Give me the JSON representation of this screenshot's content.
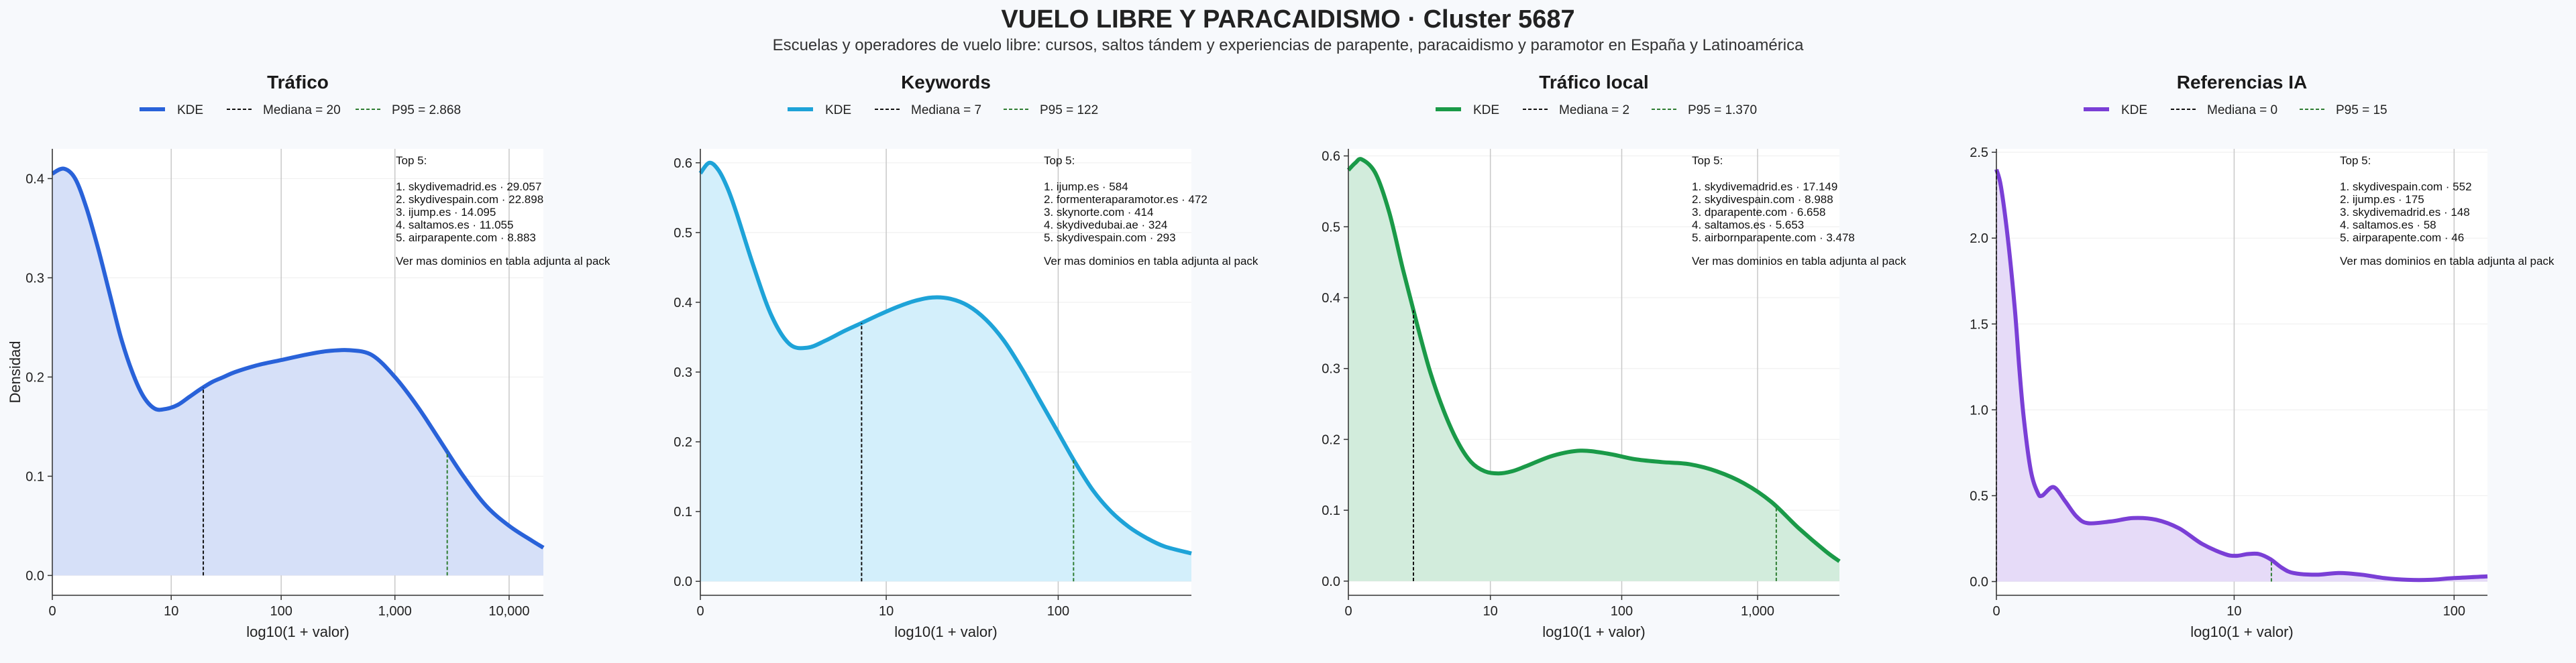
{
  "title": "VUELO LIBRE Y PARACAIDISMO · Cluster 5687",
  "subtitle": "Escuelas y operadores de vuelo libre: cursos, saltos tándem y experiencias de parapente, paracaidismo y paramotor en España y Latinoamérica",
  "chart_data": [
    {
      "type": "area",
      "title": "Tráfico",
      "xlabel": "log10(1 + valor)",
      "ylabel": "Densidad",
      "color": "#2962d9",
      "fill": "#d6e0f8",
      "xlim": [
        0,
        4.3
      ],
      "ylim": [
        -0.02,
        0.43
      ],
      "xticks": [
        {
          "v": 0,
          "label": "0"
        },
        {
          "v": 1.041,
          "label": "10"
        },
        {
          "v": 2.004,
          "label": "100"
        },
        {
          "v": 3.0,
          "label": "1,000"
        },
        {
          "v": 4.0,
          "label": "10,000"
        }
      ],
      "yticks": [
        {
          "v": 0,
          "label": "0.0"
        },
        {
          "v": 0.1,
          "label": "0.1"
        },
        {
          "v": 0.2,
          "label": "0.2"
        },
        {
          "v": 0.3,
          "label": "0.3"
        },
        {
          "v": 0.4,
          "label": "0.4"
        }
      ],
      "legend": [
        "KDE",
        "Mediana = 20",
        "P95 = 2.868"
      ],
      "median": 1.322,
      "p95": 3.458,
      "x": [
        0,
        0.1,
        0.2,
        0.3,
        0.4,
        0.5,
        0.6,
        0.7,
        0.8,
        0.9,
        1.0,
        1.1,
        1.2,
        1.3,
        1.4,
        1.5,
        1.6,
        1.8,
        2.0,
        2.2,
        2.4,
        2.6,
        2.8,
        3.0,
        3.2,
        3.4,
        3.6,
        3.8,
        4.0,
        4.2,
        4.3
      ],
      "y": [
        0.405,
        0.41,
        0.4,
        0.37,
        0.33,
        0.285,
        0.24,
        0.205,
        0.18,
        0.168,
        0.168,
        0.172,
        0.18,
        0.188,
        0.195,
        0.2,
        0.205,
        0.212,
        0.217,
        0.222,
        0.226,
        0.227,
        0.222,
        0.2,
        0.17,
        0.135,
        0.1,
        0.07,
        0.05,
        0.035,
        0.028
      ],
      "top5_heading": "Top 5:",
      "top5": [
        "1. skydivemadrid.es · 29.057",
        "2. skydivespain.com · 22.898",
        "3. ijump.es · 14.095",
        "4. saltamos.es · 11.055",
        "5. airparapente.com · 8.883"
      ],
      "note": "Ver mas dominios en tabla adjunta al pack"
    },
    {
      "type": "area",
      "title": "Keywords",
      "xlabel": "log10(1 + valor)",
      "ylabel": "",
      "color": "#1ea3d8",
      "fill": "#d3effb",
      "xlim": [
        0,
        2.75
      ],
      "ylim": [
        -0.02,
        0.62
      ],
      "xticks": [
        {
          "v": 0,
          "label": "0"
        },
        {
          "v": 1.041,
          "label": "10"
        },
        {
          "v": 2.004,
          "label": "100"
        }
      ],
      "yticks": [
        {
          "v": 0,
          "label": "0.0"
        },
        {
          "v": 0.1,
          "label": "0.1"
        },
        {
          "v": 0.2,
          "label": "0.2"
        },
        {
          "v": 0.3,
          "label": "0.3"
        },
        {
          "v": 0.4,
          "label": "0.4"
        },
        {
          "v": 0.5,
          "label": "0.5"
        },
        {
          "v": 0.6,
          "label": "0.6"
        }
      ],
      "legend": [
        "KDE",
        "Mediana = 7",
        "P95 = 122"
      ],
      "median": 0.903,
      "p95": 2.09,
      "x": [
        0,
        0.05,
        0.1,
        0.15,
        0.2,
        0.3,
        0.4,
        0.5,
        0.6,
        0.7,
        0.8,
        0.9,
        1.0,
        1.1,
        1.2,
        1.3,
        1.4,
        1.5,
        1.6,
        1.7,
        1.8,
        1.9,
        2.0,
        2.1,
        2.2,
        2.3,
        2.4,
        2.5,
        2.6,
        2.75
      ],
      "y": [
        0.585,
        0.6,
        0.59,
        0.565,
        0.53,
        0.45,
        0.38,
        0.34,
        0.335,
        0.345,
        0.358,
        0.37,
        0.382,
        0.393,
        0.402,
        0.407,
        0.405,
        0.395,
        0.375,
        0.345,
        0.305,
        0.26,
        0.215,
        0.17,
        0.13,
        0.1,
        0.078,
        0.062,
        0.05,
        0.04
      ],
      "top5_heading": "Top 5:",
      "top5": [
        "1. ijump.es · 584",
        "2. formenteraparamotor.es · 472",
        "3. skynorte.com · 414",
        "4. skydivedubai.ae · 324",
        "5. skydivespain.com · 293"
      ],
      "note": "Ver mas dominios en tabla adjunta al pack"
    },
    {
      "type": "area",
      "title": "Tráfico local",
      "xlabel": "log10(1 + valor)",
      "ylabel": "",
      "color": "#1a9a48",
      "fill": "#d2ecdc",
      "xlim": [
        0,
        3.6
      ],
      "ylim": [
        -0.02,
        0.61
      ],
      "xticks": [
        {
          "v": 0,
          "label": "0"
        },
        {
          "v": 1.041,
          "label": "10"
        },
        {
          "v": 2.004,
          "label": "100"
        },
        {
          "v": 3.0,
          "label": "1,000"
        }
      ],
      "yticks": [
        {
          "v": 0,
          "label": "0.0"
        },
        {
          "v": 0.1,
          "label": "0.1"
        },
        {
          "v": 0.2,
          "label": "0.2"
        },
        {
          "v": 0.3,
          "label": "0.3"
        },
        {
          "v": 0.4,
          "label": "0.4"
        },
        {
          "v": 0.5,
          "label": "0.5"
        },
        {
          "v": 0.6,
          "label": "0.6"
        }
      ],
      "legend": [
        "KDE",
        "Mediana = 2",
        "P95 = 1.370"
      ],
      "median": 0.477,
      "p95": 3.137,
      "x": [
        0,
        0.05,
        0.1,
        0.2,
        0.3,
        0.4,
        0.5,
        0.6,
        0.7,
        0.8,
        0.9,
        1.0,
        1.1,
        1.2,
        1.3,
        1.5,
        1.7,
        1.9,
        2.1,
        2.3,
        2.5,
        2.7,
        2.9,
        3.1,
        3.3,
        3.5,
        3.6
      ],
      "y": [
        0.58,
        0.59,
        0.595,
        0.575,
        0.52,
        0.44,
        0.365,
        0.295,
        0.24,
        0.197,
        0.168,
        0.155,
        0.152,
        0.155,
        0.162,
        0.177,
        0.184,
        0.18,
        0.172,
        0.168,
        0.165,
        0.155,
        0.138,
        0.112,
        0.075,
        0.042,
        0.028
      ],
      "top5_heading": "Top 5:",
      "top5": [
        "1. skydivemadrid.es · 17.149",
        "2. skydivespain.com · 8.988",
        "3. dparapente.com · 6.658",
        "4. saltamos.es · 5.653",
        "5. airbornparapente.com · 3.478"
      ],
      "note": "Ver mas dominios en tabla adjunta al pack"
    },
    {
      "type": "area",
      "title": "Referencias IA",
      "xlabel": "log10(1 + valor)",
      "ylabel": "",
      "color": "#7a3fd6",
      "fill": "#e6dbf8",
      "xlim": [
        0,
        2.15
      ],
      "ylim": [
        -0.08,
        2.52
      ],
      "xticks": [
        {
          "v": 0,
          "label": "0"
        },
        {
          "v": 1.041,
          "label": "10"
        },
        {
          "v": 2.004,
          "label": "100"
        }
      ],
      "yticks": [
        {
          "v": 0,
          "label": "0.0"
        },
        {
          "v": 0.5,
          "label": "0.5"
        },
        {
          "v": 1.0,
          "label": "1.0"
        },
        {
          "v": 1.5,
          "label": "1.5"
        },
        {
          "v": 2.0,
          "label": "2.0"
        },
        {
          "v": 2.5,
          "label": "2.5"
        }
      ],
      "legend": [
        "KDE",
        "Mediana = 0",
        "P95 = 15"
      ],
      "median": 0,
      "p95": 1.204,
      "x": [
        0,
        0.02,
        0.05,
        0.08,
        0.1,
        0.12,
        0.15,
        0.18,
        0.2,
        0.25,
        0.3,
        0.35,
        0.4,
        0.5,
        0.6,
        0.7,
        0.8,
        0.9,
        1.0,
        1.05,
        1.1,
        1.15,
        1.2,
        1.25,
        1.3,
        1.4,
        1.5,
        1.6,
        1.7,
        1.8,
        1.9,
        2.0,
        2.15
      ],
      "y": [
        2.4,
        2.3,
        2.0,
        1.6,
        1.25,
        0.95,
        0.65,
        0.52,
        0.5,
        0.55,
        0.47,
        0.38,
        0.34,
        0.35,
        0.37,
        0.36,
        0.31,
        0.22,
        0.16,
        0.15,
        0.16,
        0.16,
        0.13,
        0.08,
        0.05,
        0.04,
        0.05,
        0.04,
        0.02,
        0.01,
        0.01,
        0.02,
        0.03
      ],
      "top5_heading": "Top 5:",
      "top5": [
        "1. skydivespain.com · 552",
        "2. ijump.es · 175",
        "3. skydivemadrid.es · 148",
        "4. saltamos.es · 58",
        "5. airparapente.com · 46"
      ],
      "note": "Ver mas dominios en tabla adjunta al pack"
    }
  ]
}
